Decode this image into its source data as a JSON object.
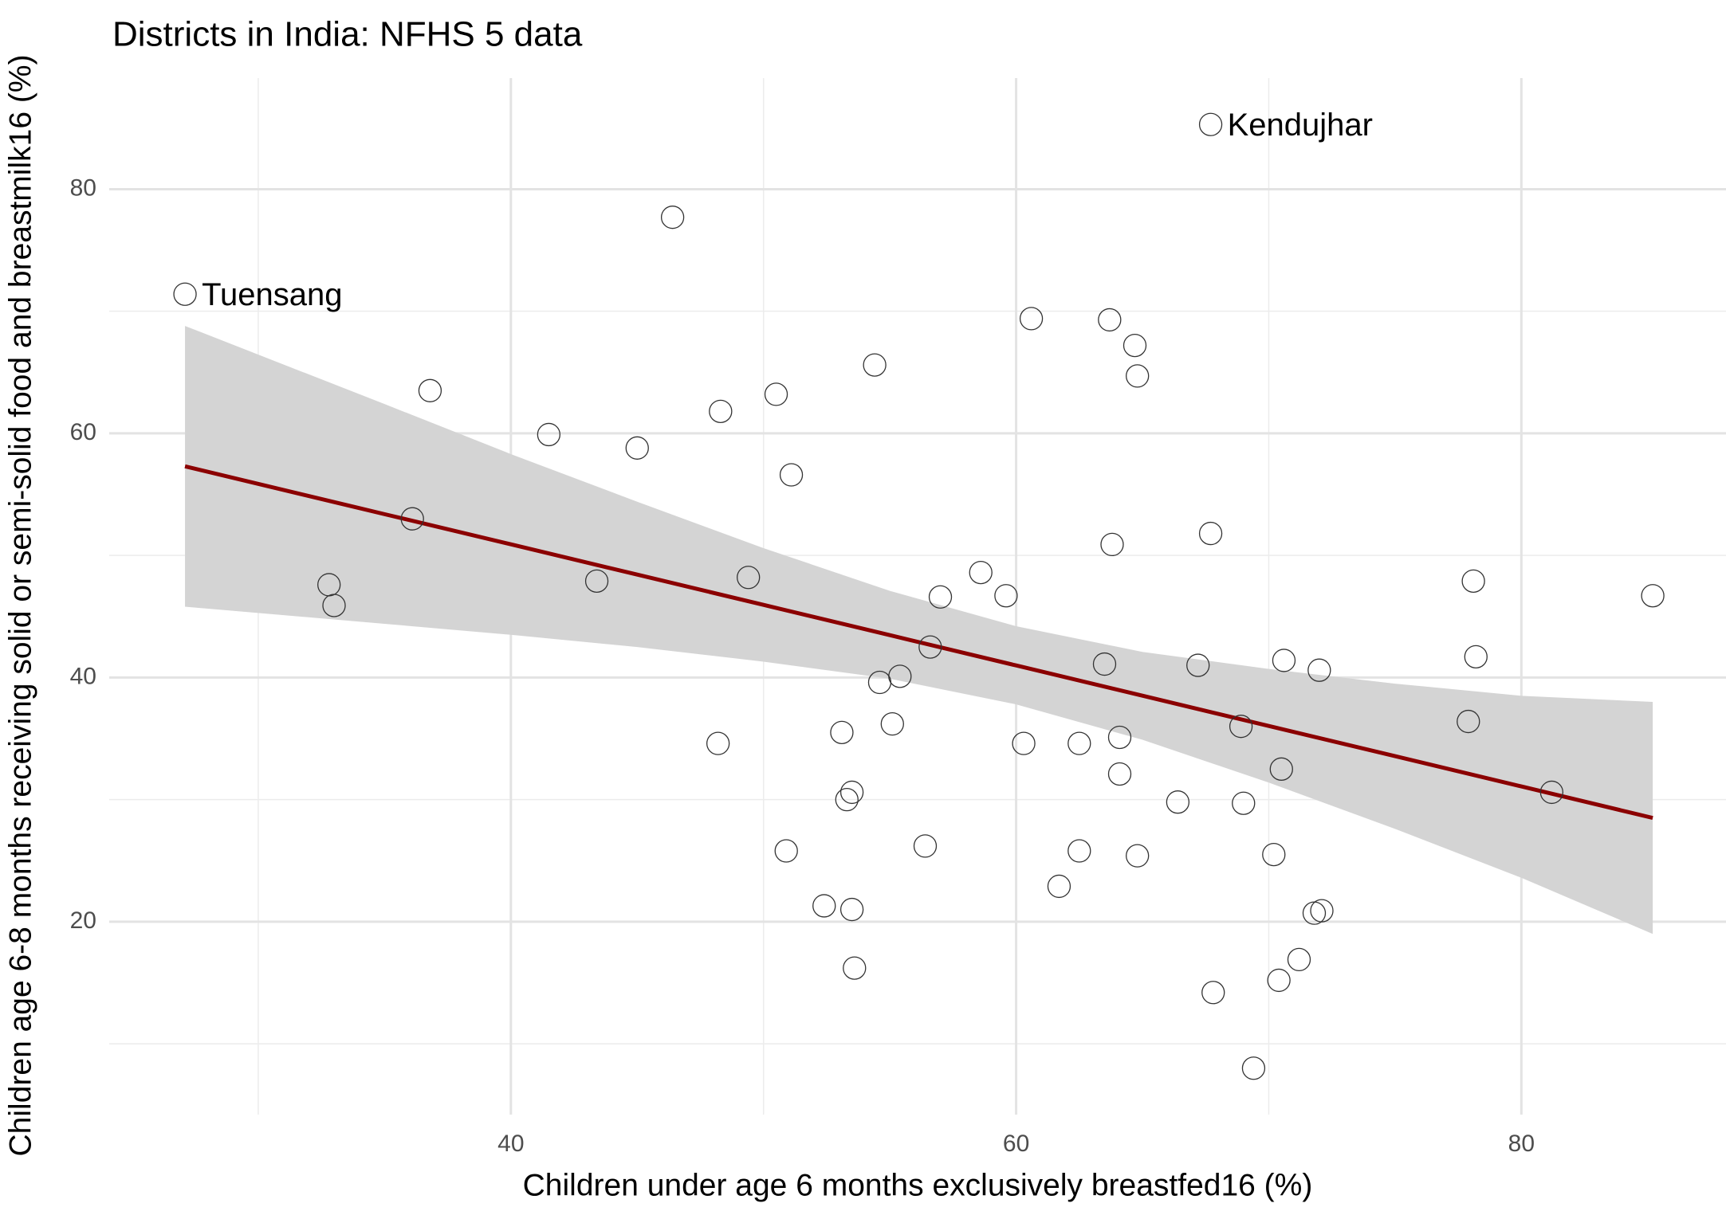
{
  "chart_data": {
    "type": "scatter",
    "title": "Districts in India: NFHS 5 data",
    "x_label": "Children under age 6 months exclusively breastfed16 (%)",
    "y_label": "Children age 6-8 months receiving solid or semi-solid food and breastmilk16 (%)",
    "x": [
      27.1,
      67.7,
      46.4,
      60.6,
      63.7,
      64.7,
      64.8,
      54.4,
      36.8,
      50.5,
      48.3,
      41.5,
      45.0,
      51.1,
      36.1,
      63.8,
      67.7,
      32.8,
      33.0,
      43.4,
      49.4,
      58.6,
      59.6,
      57.0,
      78.1,
      85.2,
      56.6,
      63.5,
      67.2,
      70.6,
      72.0,
      78.2,
      55.4,
      54.6,
      55.1,
      68.9,
      77.9,
      48.2,
      53.1,
      60.3,
      62.5,
      64.1,
      64.1,
      70.5,
      81.2,
      53.5,
      53.3,
      66.4,
      69.0,
      50.9,
      56.4,
      62.5,
      64.8,
      70.2,
      61.7,
      52.4,
      53.5,
      71.8,
      72.1,
      71.2,
      53.6,
      70.4,
      67.8,
      69.4
    ],
    "y": [
      71.4,
      85.3,
      77.7,
      69.4,
      69.3,
      67.2,
      64.7,
      65.6,
      63.5,
      63.2,
      61.8,
      59.9,
      58.8,
      56.6,
      53.0,
      50.9,
      51.8,
      47.6,
      45.9,
      47.9,
      48.2,
      48.6,
      46.7,
      46.6,
      47.9,
      46.7,
      42.5,
      41.1,
      41.0,
      41.4,
      40.6,
      41.7,
      40.1,
      39.6,
      36.2,
      36.0,
      36.4,
      34.6,
      35.5,
      34.6,
      34.6,
      35.1,
      32.1,
      32.5,
      30.6,
      30.6,
      30.0,
      29.8,
      29.7,
      25.8,
      26.2,
      25.8,
      25.4,
      25.5,
      22.9,
      21.3,
      21.0,
      20.7,
      20.9,
      16.9,
      16.2,
      15.2,
      14.2,
      8.0
    ],
    "annotations": [
      {
        "text": "Tuensang",
        "x": 27.1,
        "y": 71.4
      },
      {
        "text": "Kendujhar",
        "x": 67.7,
        "y": 85.3
      }
    ],
    "fit": {
      "color": "#8b0000",
      "band_color": "#d4d4d4",
      "x": [
        27.1,
        35,
        40,
        45,
        50,
        55,
        60,
        65,
        70,
        75,
        80,
        85.2
      ],
      "y": [
        57.3,
        53.38,
        50.91,
        48.43,
        45.95,
        43.47,
        40.99,
        38.51,
        36.03,
        33.56,
        31.08,
        28.5
      ],
      "lower": [
        45.8,
        44.4,
        43.5,
        42.5,
        41.3,
        39.9,
        37.8,
        34.9,
        31.4,
        27.6,
        23.6,
        19.0
      ],
      "upper": [
        68.8,
        62.4,
        58.3,
        54.4,
        50.6,
        47.1,
        44.2,
        42.1,
        40.7,
        39.5,
        38.5,
        38.0
      ]
    },
    "xlim": [
      24.1,
      88.1
    ],
    "ylim": [
      4.2,
      89.1
    ],
    "xticks": [
      40,
      60,
      80
    ],
    "yticks": [
      20,
      40,
      60,
      80
    ],
    "xminor": [
      30,
      50,
      70
    ],
    "yminor": [
      10,
      30,
      50,
      70
    ],
    "grid": true
  }
}
